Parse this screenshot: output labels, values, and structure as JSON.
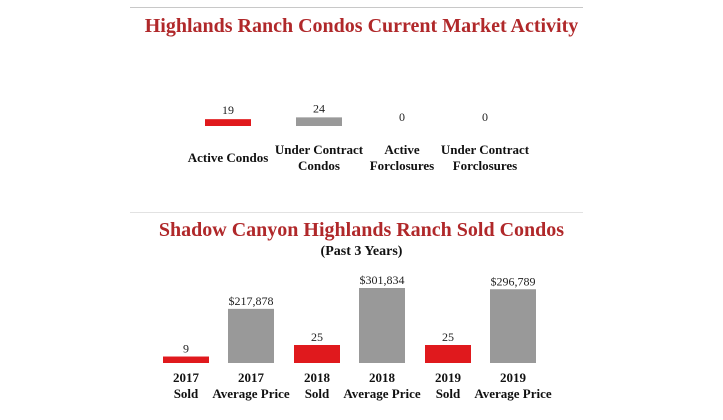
{
  "colors": {
    "accent": "#b0282a",
    "red_bar": "#e0191d",
    "gray_bar": "#999999"
  },
  "chart_data": [
    {
      "type": "bar",
      "title": "Highlands Ranch Condos Current Market Activity",
      "categories": [
        [
          "Active Condos"
        ],
        [
          "Under Contract",
          "Condos"
        ],
        [
          "Active",
          "Forclosures"
        ],
        [
          "Under Contract",
          "Forclosures"
        ]
      ],
      "values": [
        19,
        24,
        0,
        0
      ],
      "value_labels": [
        "19",
        "24",
        "0",
        "0"
      ],
      "bar_colors": [
        "#e0191d",
        "#999999",
        "#e0191d",
        "#999999"
      ],
      "ylim": [
        0,
        200
      ]
    },
    {
      "type": "bar",
      "title": "Shadow Canyon Highlands Ranch Sold Condos",
      "subtitle": "(Past 3 Years)",
      "categories": [
        [
          "2017",
          "Sold"
        ],
        [
          "2017",
          "Average Price"
        ],
        [
          "2018",
          "Sold"
        ],
        [
          "2018",
          "Average Price"
        ],
        [
          "2019",
          "Sold"
        ],
        [
          "2019",
          "Average Price"
        ]
      ],
      "values": [
        9,
        217878,
        25,
        301834,
        25,
        296789
      ],
      "value_labels": [
        "9",
        "$217,878",
        "25",
        "$301,834",
        "25",
        "$296,789"
      ],
      "bar_colors": [
        "#e0191d",
        "#999999",
        "#e0191d",
        "#999999",
        "#e0191d",
        "#999999"
      ]
    }
  ]
}
